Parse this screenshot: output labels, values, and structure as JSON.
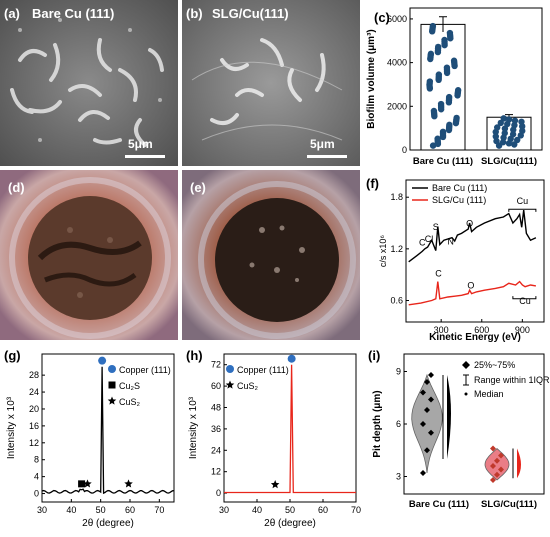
{
  "panels": {
    "a": {
      "label": "(a)",
      "title": "Bare Cu (111)",
      "scale": "5μm"
    },
    "b": {
      "label": "(b)",
      "title": "SLG/Cu(111)",
      "scale": "5μm"
    },
    "c": {
      "label": "(c)"
    },
    "d": {
      "label": "(d)"
    },
    "e": {
      "label": "(e)"
    },
    "f": {
      "label": "(f)"
    },
    "g": {
      "label": "(g)"
    },
    "h": {
      "label": "(h)"
    },
    "i": {
      "label": "(i)"
    }
  },
  "chart_data": [
    {
      "id": "c",
      "type": "bar",
      "ylabel": "Biofilm volume (μm³)",
      "categories": [
        "Bare Cu (111)",
        "SLG/Cu(111)"
      ],
      "values": [
        5750,
        1500
      ],
      "errors": [
        350,
        120
      ],
      "ylim": [
        0,
        6500
      ],
      "yticks": [
        0,
        2000,
        4000,
        6000
      ],
      "marker_color": "#1f4e79"
    },
    {
      "id": "f",
      "type": "line",
      "xlabel": "Kinetic Energy (eV)",
      "ylabel": "c/s x10⁶",
      "xticks": [
        300,
        600,
        900
      ],
      "yticks": [
        "0.6",
        "1.2",
        "1.8"
      ],
      "xlim": [
        40,
        1060
      ],
      "ylim": [
        0.35,
        2.0
      ],
      "series": [
        {
          "name": "Bare Cu (111)",
          "color": "#000000",
          "x": [
            60,
            120,
            160,
            180,
            200,
            230,
            260,
            275,
            290,
            320,
            380,
            400,
            420,
            450,
            500,
            510,
            525,
            560,
            620,
            700,
            760,
            800,
            830,
            860,
            880,
            895,
            910,
            930,
            960,
            1000
          ],
          "y": [
            1.05,
            1.12,
            1.17,
            1.2,
            1.22,
            1.3,
            1.18,
            1.46,
            1.25,
            1.3,
            1.33,
            1.29,
            1.36,
            1.38,
            1.43,
            1.5,
            1.4,
            1.45,
            1.5,
            1.55,
            1.57,
            1.61,
            1.5,
            1.55,
            1.6,
            1.45,
            1.65,
            1.38,
            1.3,
            1.33
          ]
        },
        {
          "name": "SLG/Cu (111)",
          "color": "#e8261b",
          "x": [
            60,
            150,
            230,
            260,
            275,
            290,
            350,
            400,
            450,
            500,
            510,
            525,
            560,
            620,
            700,
            760,
            800,
            850,
            880,
            900,
            920,
            960,
            1000
          ],
          "y": [
            0.55,
            0.57,
            0.6,
            0.62,
            0.82,
            0.62,
            0.64,
            0.65,
            0.66,
            0.68,
            0.72,
            0.68,
            0.7,
            0.72,
            0.74,
            0.76,
            0.8,
            0.78,
            0.82,
            0.78,
            0.76,
            0.78,
            0.77
          ]
        }
      ],
      "annotations": [
        "S",
        "Cl",
        "C",
        "N",
        "O",
        "Cu",
        "C",
        "O",
        "Cu"
      ]
    },
    {
      "id": "g",
      "type": "line",
      "xlabel": "2θ (degree)",
      "ylabel": "Intensity x 10³",
      "xlim": [
        30,
        75
      ],
      "ylim": [
        -2,
        33
      ],
      "xticks": [
        30,
        40,
        50,
        60,
        70
      ],
      "yticks": [
        0,
        4,
        8,
        12,
        16,
        20,
        24,
        28
      ],
      "peak": {
        "x": 50.5,
        "y": 30
      },
      "legend": [
        {
          "symbol": "circle",
          "label": "Copper (111)"
        },
        {
          "symbol": "square",
          "label": "Cu₂S"
        },
        {
          "symbol": "star",
          "label": "CuS₂"
        }
      ],
      "markers": [
        {
          "x": 43.5,
          "symbol": "square"
        },
        {
          "x": 45.5,
          "symbol": "star"
        },
        {
          "x": 59.5,
          "symbol": "star"
        }
      ]
    },
    {
      "id": "h",
      "type": "line",
      "xlabel": "2θ (degree)",
      "ylabel": "Intensity x 10³",
      "xlim": [
        30,
        70
      ],
      "ylim": [
        -5,
        78
      ],
      "xticks": [
        30,
        40,
        50,
        60,
        70
      ],
      "yticks": [
        0,
        12,
        24,
        36,
        48,
        60,
        72
      ],
      "peak": {
        "x": 50.5,
        "y": 72
      },
      "legend": [
        {
          "symbol": "circle",
          "label": "Copper (111)"
        },
        {
          "symbol": "star",
          "label": "CuS₂"
        }
      ],
      "markers": [
        {
          "x": 45.5,
          "symbol": "star"
        }
      ]
    },
    {
      "id": "i",
      "type": "violin",
      "ylabel": "Pit depth (μm)",
      "categories": [
        "Bare Cu (111)",
        "SLG/Cu(111)"
      ],
      "ylim": [
        2,
        10
      ],
      "yticks": [
        3,
        6,
        9
      ],
      "legend": [
        "25%~75%",
        "Range within 1IQR",
        "Median"
      ],
      "groups": [
        {
          "name": "Bare Cu (111)",
          "color": "#9e9e9e",
          "q1": 5.0,
          "q3": 8.2,
          "median": 6.8,
          "whisker": [
            4.0,
            8.8
          ],
          "points": [
            3.2,
            4.5,
            5.5,
            6.0,
            6.8,
            7.4,
            7.8,
            8.4,
            8.8
          ]
        },
        {
          "name": "SLG/Cu(111)",
          "color": "#e8707a",
          "q1": 3.0,
          "q3": 4.5,
          "median": 3.6,
          "whisker": [
            2.9,
            4.6
          ],
          "points": [
            2.8,
            3.1,
            3.4,
            3.6,
            3.9,
            4.2,
            4.6
          ]
        }
      ]
    }
  ]
}
